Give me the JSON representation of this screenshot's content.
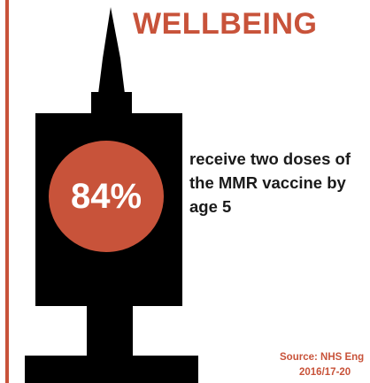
{
  "title": "WELLBEING",
  "stat": {
    "value": "84%",
    "description_lines": [
      "receive two doses of",
      "the MMR vaccine by",
      "age 5"
    ]
  },
  "source": {
    "line1": "Source: NHS Eng",
    "line2": "2016/17-20"
  },
  "colors": {
    "accent": "#c8533a",
    "syringe": "#000000",
    "text": "#1a1a1a"
  },
  "icons": {
    "syringe": "syringe-icon"
  }
}
